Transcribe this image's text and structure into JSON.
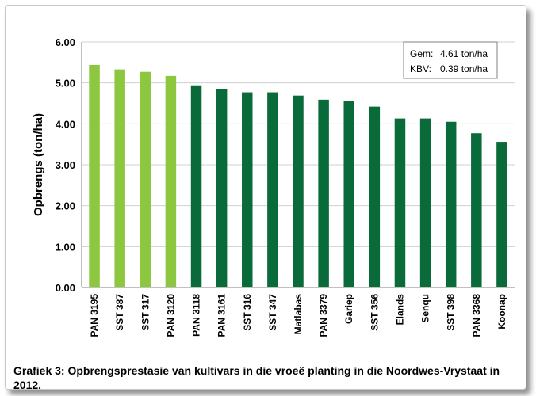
{
  "caption": "Grafiek 3: Opbrengsprestasie van kultivars in die vroeë planting in die Noordwes-Vrystaat in 2012.",
  "stats": {
    "gem_label": "Gem:",
    "gem_value": "4.61 ton/ha",
    "kbv_label": "KBV:",
    "kbv_value": "0.39 ton/ha"
  },
  "colors": {
    "highlight": "#8dc63f",
    "normal": "#0a6b3a",
    "grid": "#d0d0d0",
    "axis": "#808080"
  },
  "chart_data": {
    "type": "bar",
    "title": "",
    "xlabel": "",
    "ylabel": "Opbrengs (ton/ha)",
    "ylim": [
      0,
      6
    ],
    "yticks": [
      "0.00",
      "1.00",
      "2.00",
      "3.00",
      "4.00",
      "5.00",
      "6.00"
    ],
    "grid": true,
    "categories": [
      "PAN 3195",
      "SST 387",
      "SST 317",
      "PAN 3120",
      "PAN 3118",
      "PAN 3161",
      "SST 316",
      "SST 347",
      "Matlabas",
      "PAN 3379",
      "Gariep",
      "SST 356",
      "Elands",
      "Senqu",
      "SST 398",
      "PAN 3368",
      "Koonap"
    ],
    "values": [
      5.44,
      5.33,
      5.27,
      5.17,
      4.94,
      4.85,
      4.77,
      4.77,
      4.69,
      4.59,
      4.55,
      4.42,
      4.13,
      4.13,
      4.05,
      3.77,
      3.56
    ],
    "highlighted": [
      true,
      true,
      true,
      true,
      false,
      false,
      false,
      false,
      false,
      false,
      false,
      false,
      false,
      false,
      false,
      false,
      false
    ]
  }
}
